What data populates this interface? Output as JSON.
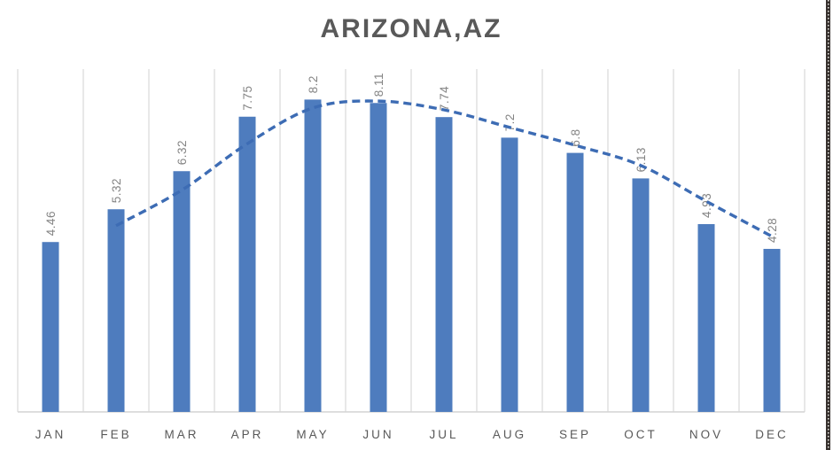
{
  "chart_data": {
    "type": "bar",
    "title": "ARIZONA,AZ",
    "categories": [
      "JAN",
      "FEB",
      "MAR",
      "APR",
      "MAY",
      "JUN",
      "JUL",
      "AUG",
      "SEP",
      "OCT",
      "NOV",
      "DEC"
    ],
    "values": [
      4.46,
      5.32,
      6.32,
      7.75,
      8.2,
      8.11,
      7.74,
      7.2,
      6.8,
      6.13,
      4.93,
      4.28
    ],
    "data_labels": [
      "4.46",
      "5.32",
      "6.32",
      "7.75",
      "8.2",
      "8.11",
      "7.74",
      "7.2",
      "6.8",
      "6.13",
      "4.93",
      "4.28"
    ],
    "xlabel": "",
    "ylabel": "",
    "ylim": [
      0,
      9
    ],
    "gridlines": "vertical-only",
    "legend": "none",
    "data_label_rotation_deg": -90,
    "trendline": {
      "type": "2-period moving average",
      "line_style": "dashed",
      "smoothed": true,
      "start_category": "FEB",
      "categories": [
        "FEB",
        "MAR",
        "APR",
        "MAY",
        "JUN",
        "JUL",
        "AUG",
        "SEP",
        "OCT",
        "NOV",
        "DEC"
      ],
      "values": [
        4.89,
        5.82,
        7.04,
        7.98,
        8.16,
        7.93,
        7.47,
        7.0,
        6.47,
        5.53,
        4.61
      ]
    }
  },
  "colors": {
    "background": "#FFFFFF",
    "bar": "#4E7CBE",
    "trendline": "#3D6CB4",
    "gridline": "#D9D9D9",
    "axis_line": "#D4D4D4",
    "title_text": "#595959",
    "data_label_text": "#848484",
    "category_label_text": "#595959",
    "page_edge_strip": "#38322F"
  }
}
